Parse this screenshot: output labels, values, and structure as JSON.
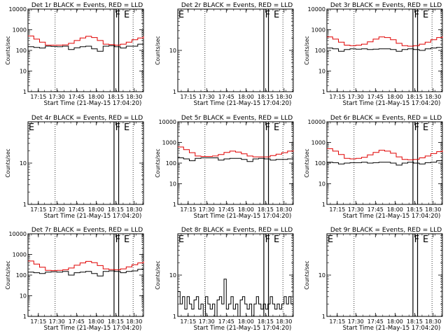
{
  "colors": {
    "events": "#000000",
    "lld": "#e00000",
    "background": "#ffffff"
  },
  "chart_data": [
    {
      "type": "line",
      "title": "Det 1r BLACK = Events, RED = LLD",
      "xlabel": "Start Time (21-May-15 17:04:20)",
      "ylabel": "Counts/sec",
      "x_ticks": [
        "17:15",
        "17:30",
        "17:45",
        "18:00",
        "18:15",
        "18:30"
      ],
      "y_ticks": [
        "1",
        "10",
        "100",
        "1000",
        "10000"
      ],
      "y_scale": "log",
      "ylim": [
        1,
        10000
      ],
      "markers": [
        "F",
        "E"
      ],
      "series": [
        {
          "name": "Events",
          "color": "#000000",
          "x": [
            0,
            5,
            10,
            15,
            20,
            25,
            30,
            35,
            40,
            45,
            50,
            55,
            60,
            65,
            70,
            75,
            80,
            85,
            90,
            95,
            100
          ],
          "y": [
            150,
            140,
            130,
            160,
            155,
            150,
            160,
            110,
            135,
            150,
            160,
            120,
            90,
            160,
            170,
            150,
            130,
            160,
            160,
            200,
            180
          ]
        },
        {
          "name": "LLD",
          "color": "#e00000",
          "x": [
            0,
            5,
            10,
            15,
            20,
            25,
            30,
            35,
            40,
            45,
            50,
            55,
            60,
            65,
            70,
            75,
            80,
            85,
            90,
            95,
            100
          ],
          "y": [
            500,
            350,
            250,
            180,
            180,
            180,
            185,
            220,
            300,
            400,
            480,
            420,
            300,
            200,
            190,
            180,
            200,
            250,
            330,
            400,
            480
          ]
        }
      ]
    },
    {
      "type": "line",
      "title": "Det 2r BLACK = Events, RED = LLD",
      "xlabel": "Start Time (21-May-15 17:04:20)",
      "ylabel": "Counts/sec",
      "x_ticks": [
        "17:15",
        "17:30",
        "17:45",
        "18:00",
        "18:15",
        "18:30"
      ],
      "y_ticks": [
        "1",
        "10"
      ],
      "y_scale": "log",
      "ylim": [
        1,
        100
      ],
      "markers": [
        "E",
        "F",
        "E"
      ],
      "series": []
    },
    {
      "type": "line",
      "title": "Det 3r BLACK = Events, RED = LLD",
      "xlabel": "Start Time (21-May-15 17:04:20)",
      "ylabel": "Counts/sec",
      "x_ticks": [
        "17:15",
        "17:30",
        "17:45",
        "18:00",
        "18:15",
        "18:30"
      ],
      "y_ticks": [
        "1",
        "10",
        "100",
        "1000",
        "10000"
      ],
      "y_scale": "log",
      "ylim": [
        1,
        10000
      ],
      "markers": [
        "F",
        "E"
      ],
      "series": [
        {
          "name": "Events",
          "color": "#000000",
          "x": [
            0,
            5,
            10,
            15,
            20,
            25,
            30,
            35,
            40,
            45,
            50,
            55,
            60,
            65,
            70,
            75,
            80,
            85,
            90,
            95,
            100
          ],
          "y": [
            130,
            120,
            90,
            110,
            120,
            115,
            120,
            110,
            115,
            120,
            120,
            110,
            90,
            110,
            120,
            110,
            100,
            120,
            130,
            140,
            160
          ]
        },
        {
          "name": "LLD",
          "color": "#e00000",
          "x": [
            0,
            5,
            10,
            15,
            20,
            25,
            30,
            35,
            40,
            45,
            50,
            55,
            60,
            65,
            70,
            75,
            80,
            85,
            90,
            95,
            100
          ],
          "y": [
            450,
            350,
            250,
            180,
            170,
            180,
            200,
            260,
            350,
            450,
            420,
            330,
            220,
            170,
            160,
            170,
            200,
            250,
            330,
            420,
            480
          ]
        }
      ]
    },
    {
      "type": "line",
      "title": "Det 4r BLACK = Events, RED = LLD",
      "xlabel": "Start Time (21-May-15 17:04:20)",
      "ylabel": "Counts/sec",
      "x_ticks": [
        "17:15",
        "17:30",
        "17:45",
        "18:00",
        "18:15",
        "18:30"
      ],
      "y_ticks": [
        "1",
        "10"
      ],
      "y_scale": "log",
      "ylim": [
        1,
        100
      ],
      "markers": [
        "E",
        "F",
        "E"
      ],
      "series": []
    },
    {
      "type": "line",
      "title": "Det 5r BLACK = Events, RED = LLD",
      "xlabel": "Start Time (21-May-15 17:04:20)",
      "ylabel": "Counts/sec",
      "x_ticks": [
        "17:15",
        "17:30",
        "17:45",
        "18:00",
        "18:15",
        "18:30"
      ],
      "y_ticks": [
        "1",
        "10",
        "100",
        "1000",
        "10000"
      ],
      "y_scale": "log",
      "ylim": [
        1,
        10000
      ],
      "markers": [
        "F",
        "E"
      ],
      "series": [
        {
          "name": "Events",
          "color": "#000000",
          "x": [
            0,
            5,
            10,
            15,
            20,
            25,
            30,
            35,
            40,
            45,
            50,
            55,
            60,
            65,
            70,
            75,
            80,
            85,
            90,
            95,
            100
          ],
          "y": [
            180,
            160,
            130,
            170,
            180,
            180,
            180,
            140,
            160,
            170,
            170,
            150,
            120,
            160,
            170,
            160,
            140,
            150,
            150,
            160,
            180
          ]
        },
        {
          "name": "LLD",
          "color": "#e00000",
          "x": [
            0,
            5,
            10,
            15,
            20,
            25,
            30,
            35,
            40,
            45,
            50,
            55,
            60,
            65,
            70,
            75,
            80,
            85,
            90,
            95,
            100
          ],
          "y": [
            600,
            450,
            320,
            220,
            210,
            210,
            220,
            260,
            330,
            380,
            340,
            280,
            220,
            200,
            200,
            200,
            230,
            270,
            320,
            380,
            420
          ]
        }
      ]
    },
    {
      "type": "line",
      "title": "Det 6r BLACK = Events, RED = LLD",
      "xlabel": "Start Time (21-May-15 17:04:20)",
      "ylabel": "Counts/sec",
      "x_ticks": [
        "17:15",
        "17:30",
        "17:45",
        "18:00",
        "18:15",
        "18:30"
      ],
      "y_ticks": [
        "1",
        "10",
        "100",
        "1000",
        "10000"
      ],
      "y_scale": "log",
      "ylim": [
        1,
        10000
      ],
      "markers": [
        "F",
        "E"
      ],
      "series": [
        {
          "name": "Events",
          "color": "#000000",
          "x": [
            0,
            5,
            10,
            15,
            20,
            25,
            30,
            35,
            40,
            45,
            50,
            55,
            60,
            65,
            70,
            75,
            80,
            85,
            90,
            95,
            100
          ],
          "y": [
            110,
            105,
            90,
            100,
            105,
            105,
            110,
            100,
            105,
            110,
            110,
            100,
            80,
            100,
            110,
            100,
            90,
            105,
            110,
            130,
            150
          ]
        },
        {
          "name": "LLD",
          "color": "#e00000",
          "x": [
            0,
            5,
            10,
            15,
            20,
            25,
            30,
            35,
            40,
            45,
            50,
            55,
            60,
            65,
            70,
            75,
            80,
            85,
            90,
            95,
            100
          ],
          "y": [
            500,
            380,
            260,
            170,
            160,
            170,
            190,
            250,
            330,
            420,
            380,
            300,
            200,
            150,
            145,
            150,
            180,
            220,
            290,
            360,
            420
          ]
        }
      ]
    },
    {
      "type": "line",
      "title": "Det 7r BLACK = Events, RED = LLD",
      "xlabel": "Start Time (21-May-15 17:04:20)",
      "ylabel": "Counts/sec",
      "x_ticks": [
        "17:15",
        "17:30",
        "17:45",
        "18:00",
        "18:15",
        "18:30"
      ],
      "y_ticks": [
        "1",
        "10",
        "100",
        "1000",
        "10000"
      ],
      "y_scale": "log",
      "ylim": [
        1,
        10000
      ],
      "markers": [
        "F",
        "E"
      ],
      "series": [
        {
          "name": "Events",
          "color": "#000000",
          "x": [
            0,
            5,
            10,
            15,
            20,
            25,
            30,
            35,
            40,
            45,
            50,
            55,
            60,
            65,
            70,
            75,
            80,
            85,
            90,
            95,
            100
          ],
          "y": [
            140,
            130,
            120,
            140,
            145,
            140,
            150,
            100,
            130,
            140,
            150,
            120,
            90,
            150,
            160,
            150,
            130,
            150,
            160,
            190,
            200
          ]
        },
        {
          "name": "LLD",
          "color": "#e00000",
          "x": [
            0,
            5,
            10,
            15,
            20,
            25,
            30,
            35,
            40,
            45,
            50,
            55,
            60,
            65,
            70,
            75,
            80,
            85,
            90,
            95,
            100
          ],
          "y": [
            480,
            340,
            240,
            170,
            165,
            170,
            180,
            220,
            300,
            390,
            460,
            400,
            290,
            200,
            185,
            180,
            200,
            250,
            320,
            390,
            460
          ]
        }
      ]
    },
    {
      "type": "line",
      "title": "Det 8r BLACK = Events, RED = LLD",
      "xlabel": "Start Time (21-May-15 17:04:20)",
      "ylabel": "Counts/sec",
      "x_ticks": [
        "17:15",
        "17:30",
        "17:45",
        "18:00",
        "18:15",
        "18:30"
      ],
      "y_ticks": [
        "1",
        "10"
      ],
      "y_scale": "log",
      "ylim": [
        1,
        100
      ],
      "markers": [
        "E",
        "F",
        "E"
      ],
      "series": [
        {
          "name": "Events",
          "color": "#000000",
          "x": [
            0,
            2,
            4,
            6,
            8,
            10,
            12,
            14,
            16,
            18,
            20,
            22,
            24,
            26,
            28,
            30,
            32,
            34,
            36,
            38,
            40,
            42,
            44,
            46,
            48,
            50,
            52,
            54,
            56,
            58,
            60,
            62,
            64,
            66,
            68,
            70,
            72,
            74,
            76,
            78,
            80,
            82,
            84,
            86,
            88,
            90,
            92,
            94,
            96,
            98,
            100
          ],
          "y": [
            4,
            2,
            3,
            1.5,
            3,
            2,
            1.5,
            2.5,
            3,
            1.5,
            2,
            1,
            3,
            2,
            1.5,
            2,
            1,
            2.5,
            3,
            2,
            8,
            1.5,
            2,
            3,
            1.5,
            2,
            1,
            2.5,
            3,
            2,
            1.5,
            2,
            1,
            2,
            3,
            2,
            1.5,
            2,
            1.5,
            2,
            3,
            2,
            1.5,
            2,
            1.5,
            2,
            3,
            2,
            3,
            2,
            3
          ]
        }
      ]
    },
    {
      "type": "line",
      "title": "Det 9r BLACK = Events, RED = LLD",
      "xlabel": "Start Time (21-May-15 17:04:20)",
      "ylabel": "Counts/sec",
      "x_ticks": [
        "17:15",
        "17:30",
        "17:45",
        "18:00",
        "18:15",
        "18:30"
      ],
      "y_ticks": [
        "1",
        "10"
      ],
      "y_scale": "log",
      "ylim": [
        1,
        100
      ],
      "markers": [
        "E",
        "F",
        "E"
      ],
      "series": []
    }
  ]
}
